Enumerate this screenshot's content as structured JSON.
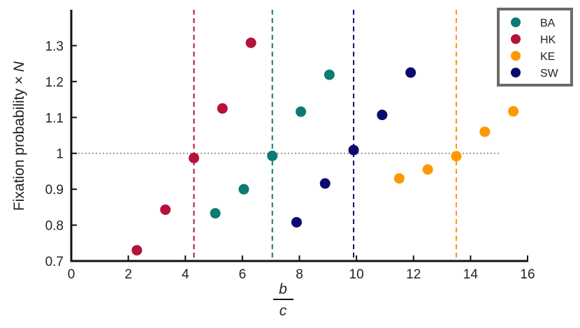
{
  "chart_data": {
    "type": "scatter",
    "xlabel_numerator": "b",
    "xlabel_denominator": "c",
    "ylabel_text": "Fixation probability × ",
    "ylabel_var": "N",
    "xlim": [
      0,
      16
    ],
    "ylim": [
      0.7,
      1.4
    ],
    "xticks": [
      0,
      2,
      4,
      6,
      8,
      10,
      12,
      14,
      16
    ],
    "yticks": [
      {
        "value": 0.7,
        "label": "0.7"
      },
      {
        "value": 0.8,
        "label": "0.8"
      },
      {
        "value": 0.9,
        "label": "0.9"
      },
      {
        "value": 1.0,
        "label": "1"
      },
      {
        "value": 1.1,
        "label": "1.1"
      },
      {
        "value": 1.2,
        "label": "1.2"
      },
      {
        "value": 1.3,
        "label": "1.3"
      }
    ],
    "grid": false,
    "legend_position": "top-right",
    "reference_line": {
      "y": 1.0,
      "x_range": [
        0,
        15
      ],
      "style": "dotted",
      "color": "#999999"
    },
    "series": [
      {
        "name": "BA",
        "color": "#0d7a73",
        "points": [
          [
            5.05,
            0.833
          ],
          [
            6.05,
            0.9
          ],
          [
            7.05,
            0.993
          ],
          [
            8.05,
            1.116
          ],
          [
            9.05,
            1.219
          ]
        ],
        "threshold": 7.05
      },
      {
        "name": "HK",
        "color": "#b5123a",
        "points": [
          [
            2.3,
            0.73
          ],
          [
            3.3,
            0.843
          ],
          [
            4.3,
            0.987
          ],
          [
            5.3,
            1.125
          ],
          [
            6.3,
            1.308
          ]
        ],
        "threshold": 4.3
      },
      {
        "name": "KE",
        "color": "#ff9800",
        "points": [
          [
            11.5,
            0.93
          ],
          [
            12.5,
            0.955
          ],
          [
            13.5,
            0.992
          ],
          [
            14.5,
            1.06
          ],
          [
            15.5,
            1.117
          ]
        ],
        "threshold": 13.5
      },
      {
        "name": "SW",
        "color": "#0b0b6e",
        "points": [
          [
            7.9,
            0.808
          ],
          [
            8.9,
            0.916
          ],
          [
            9.9,
            1.009
          ],
          [
            10.9,
            1.107
          ],
          [
            11.9,
            1.225
          ]
        ],
        "threshold": 9.9
      }
    ]
  }
}
